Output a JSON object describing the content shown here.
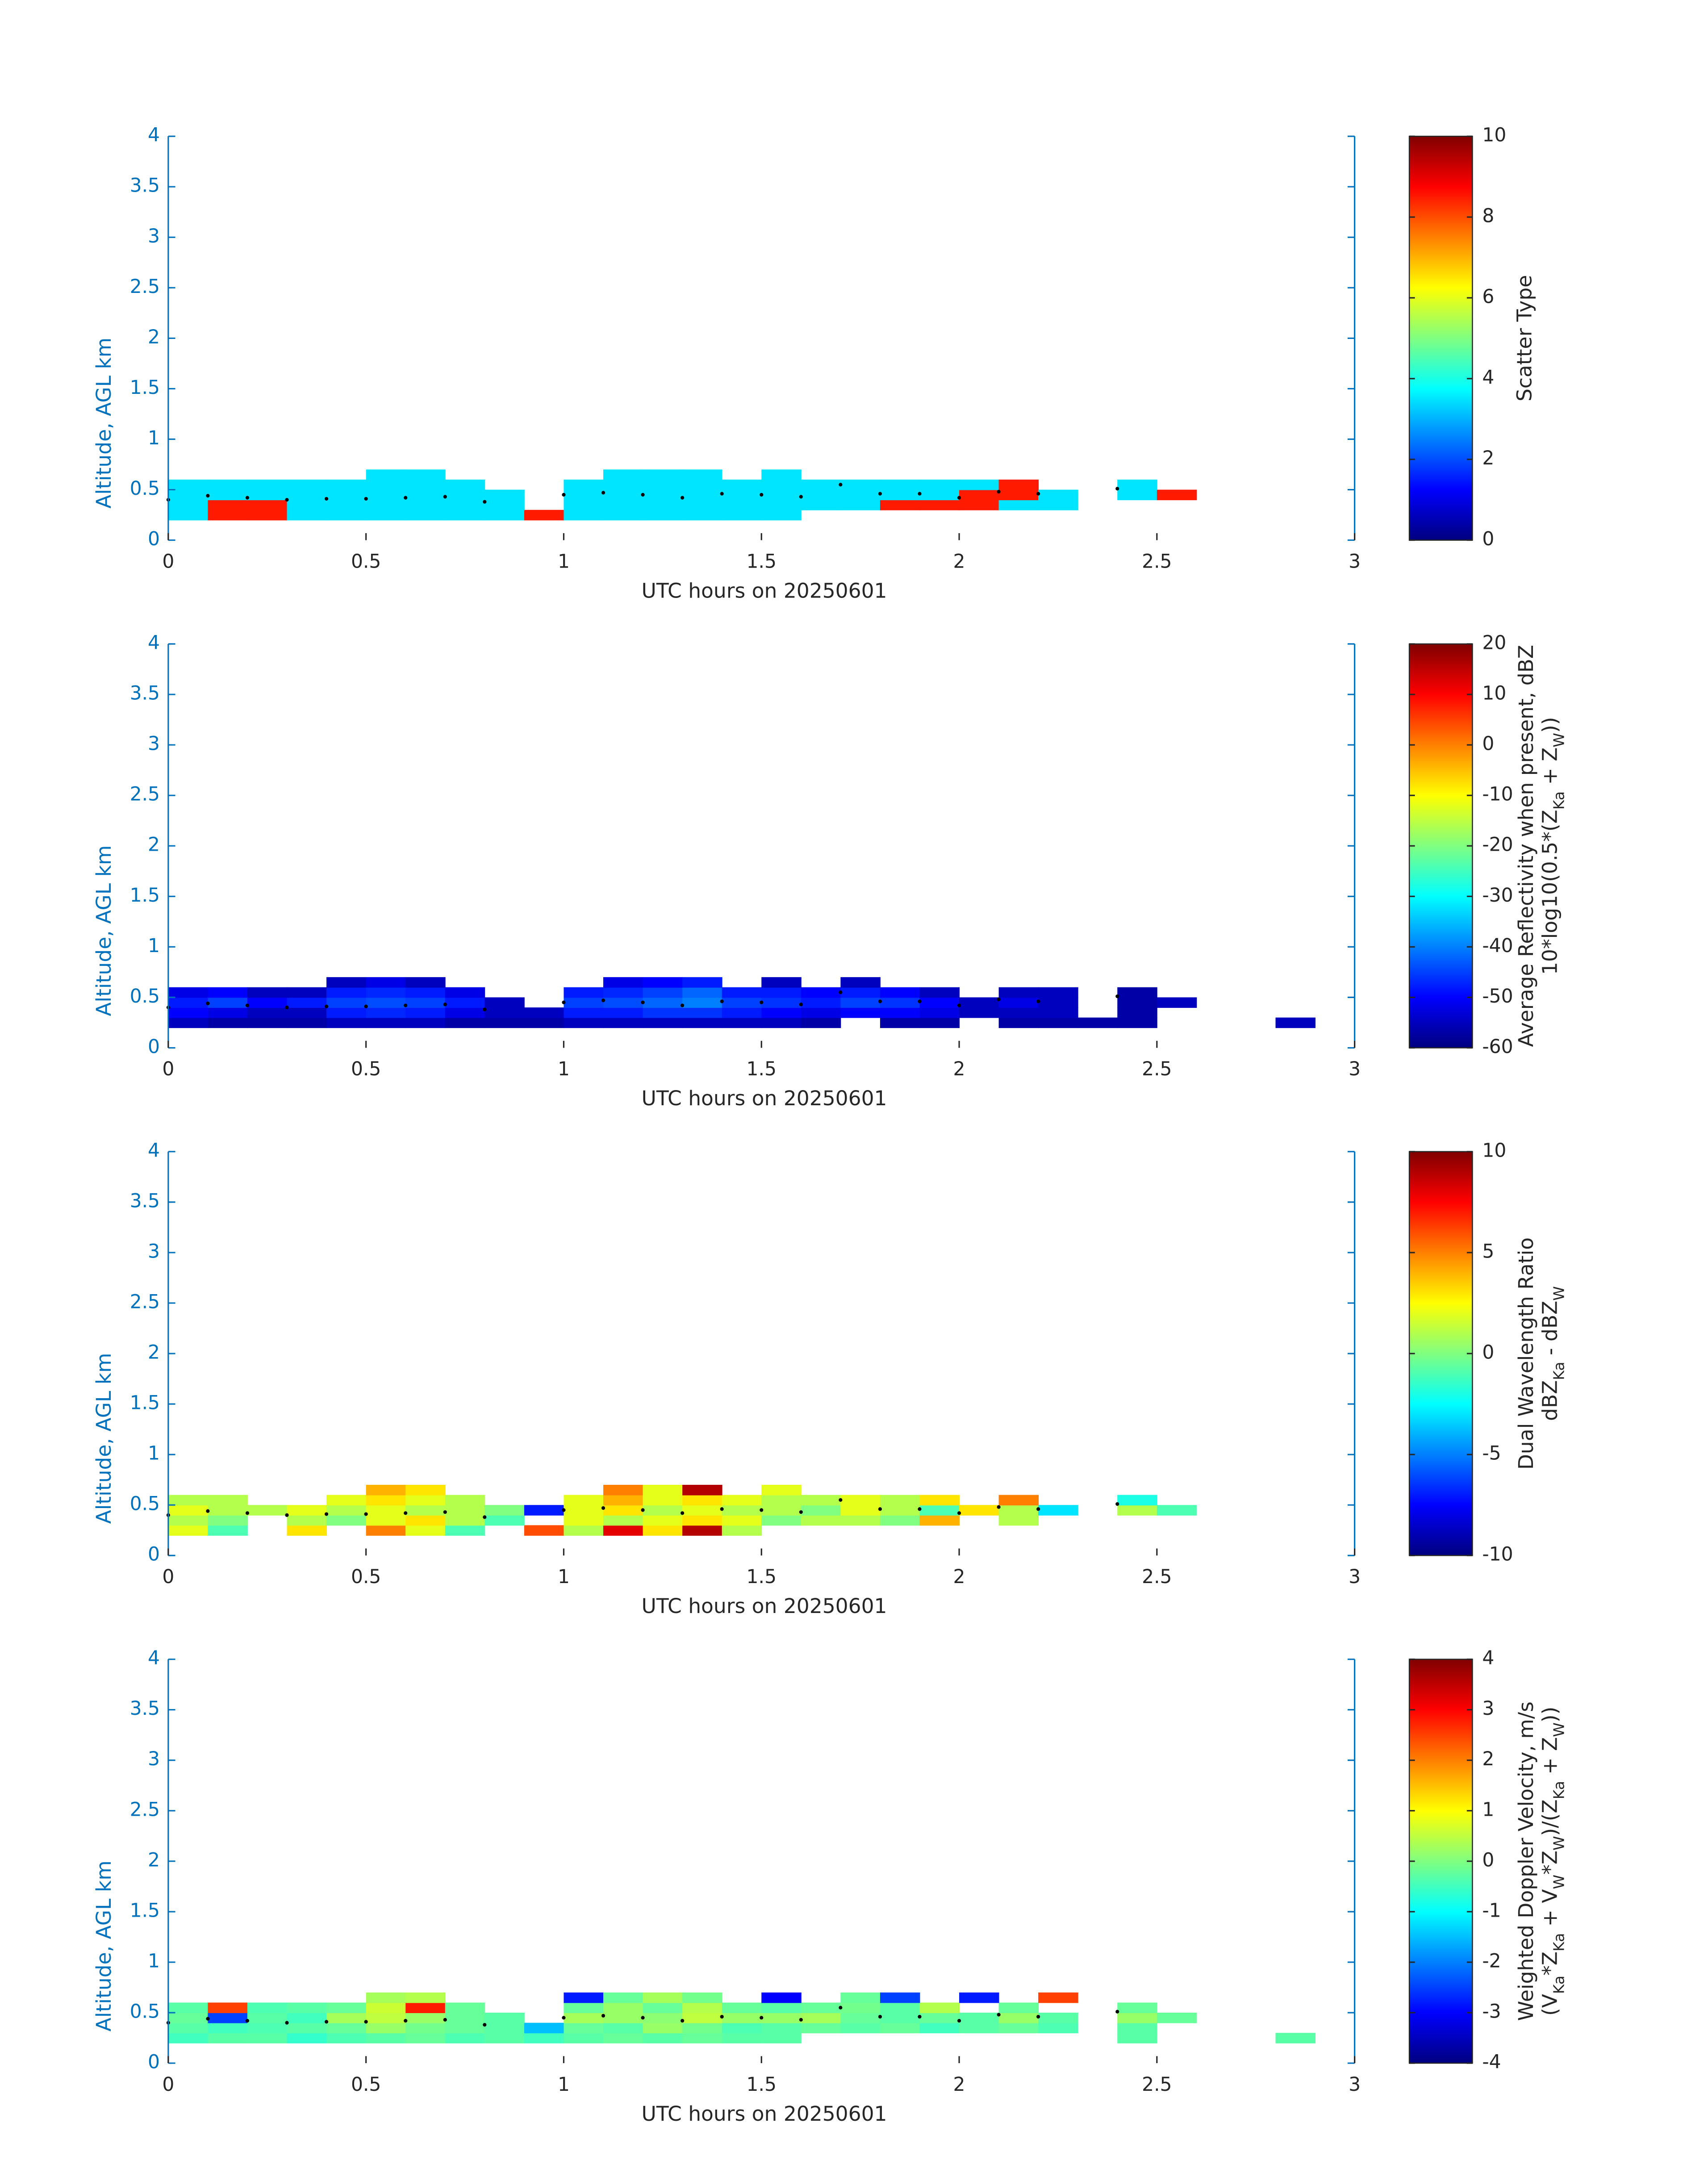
{
  "chart_data": [
    {
      "type": "heatmap",
      "xlabel": "UTC hours on 20250601",
      "ylabel": "Altitude, AGL km",
      "xlim": [
        0,
        3
      ],
      "ylim": [
        0,
        4
      ],
      "xticks": [
        0,
        0.5,
        1,
        1.5,
        2,
        2.5,
        3
      ],
      "yticks": [
        0,
        0.5,
        1,
        1.5,
        2,
        2.5,
        3,
        3.5,
        4
      ],
      "colormap": "jet",
      "clim": [
        0,
        10
      ],
      "cticks": [
        0,
        2,
        4,
        6,
        8,
        10
      ],
      "clabel": [
        [
          "Scatter Type"
        ]
      ],
      "x": [
        0.05,
        0.15,
        0.25,
        0.35,
        0.45,
        0.55,
        0.65,
        0.75,
        0.85,
        0.95,
        1.05,
        1.15,
        1.25,
        1.35,
        1.45,
        1.55,
        1.65,
        1.75,
        1.85,
        1.95,
        2.05,
        2.15,
        2.25,
        2.35,
        2.45,
        2.55,
        2.65,
        2.75,
        2.85,
        2.95
      ],
      "y": [
        0.25,
        0.35,
        0.45,
        0.55,
        0.65
      ],
      "z": [
        [
          3.5,
          8.5,
          8.5,
          3.5,
          3.5,
          3.5,
          3.5,
          3.5,
          3.5,
          8.5,
          3.5,
          3.5,
          3.5,
          3.5,
          3.5,
          3.5,
          null,
          null,
          null,
          null,
          null,
          null,
          null,
          null,
          null,
          null,
          null,
          null,
          null,
          null
        ],
        [
          3.5,
          8.5,
          8.5,
          3.5,
          3.5,
          3.5,
          3.5,
          3.5,
          3.5,
          null,
          3.5,
          3.5,
          3.5,
          3.5,
          3.5,
          3.5,
          3.5,
          3.5,
          8.5,
          8.5,
          8.5,
          3.5,
          3.5,
          null,
          null,
          null,
          null,
          null,
          null,
          null
        ],
        [
          3.5,
          3.5,
          3.5,
          3.5,
          3.5,
          3.5,
          3.5,
          3.5,
          3.5,
          null,
          3.5,
          3.5,
          3.5,
          3.5,
          3.5,
          3.5,
          3.5,
          3.5,
          3.5,
          3.5,
          8.5,
          8.5,
          3.5,
          null,
          3.5,
          8.5,
          null,
          null,
          null,
          null
        ],
        [
          3.5,
          3.5,
          3.5,
          3.5,
          3.5,
          3.5,
          3.5,
          3.5,
          null,
          null,
          3.5,
          3.5,
          3.5,
          3.5,
          3.5,
          3.5,
          3.5,
          3.5,
          3.5,
          3.5,
          3.5,
          8.5,
          null,
          null,
          3.5,
          null,
          null,
          null,
          null,
          null
        ],
        [
          null,
          null,
          null,
          null,
          null,
          3.5,
          3.5,
          null,
          null,
          null,
          null,
          3.5,
          3.5,
          3.5,
          null,
          3.5,
          null,
          null,
          null,
          null,
          null,
          null,
          null,
          null,
          null,
          null,
          null,
          null,
          null,
          null
        ]
      ],
      "dots": {
        "color": "#000000",
        "x": [
          0,
          0.1,
          0.2,
          0.3,
          0.4,
          0.5,
          0.6,
          0.7,
          0.8,
          1,
          1.1,
          1.2,
          1.3,
          1.4,
          1.5,
          1.6,
          1.7,
          1.8,
          1.9,
          2,
          2.1,
          2.2,
          2.4
        ],
        "y": [
          0.4,
          0.44,
          0.42,
          0.4,
          0.41,
          0.41,
          0.42,
          0.43,
          0.38,
          0.45,
          0.47,
          0.45,
          0.42,
          0.46,
          0.45,
          0.43,
          0.55,
          0.46,
          0.46,
          0.42,
          0.48,
          0.46,
          0.51
        ]
      }
    },
    {
      "type": "heatmap",
      "xlabel": "UTC hours on 20250601",
      "ylabel": "Altitude, AGL km",
      "xlim": [
        0,
        3
      ],
      "ylim": [
        0,
        4
      ],
      "xticks": [
        0,
        0.5,
        1,
        1.5,
        2,
        2.5,
        3
      ],
      "yticks": [
        0,
        0.5,
        1,
        1.5,
        2,
        2.5,
        3,
        3.5,
        4
      ],
      "colormap": "jet",
      "clim": [
        -60,
        20
      ],
      "cticks": [
        -60,
        -50,
        -40,
        -30,
        -20,
        -10,
        0,
        10,
        20
      ],
      "clabel": [
        [
          "Average Reflectivity when present, dBZ"
        ],
        [
          "10*log10(0.5*(Z",
          {
            "sub": "Ka"
          },
          " + Z",
          {
            "sub": "W"
          },
          "))"
        ]
      ],
      "x": [
        0.05,
        0.15,
        0.25,
        0.35,
        0.45,
        0.55,
        0.65,
        0.75,
        0.85,
        0.95,
        1.05,
        1.15,
        1.25,
        1.35,
        1.45,
        1.55,
        1.65,
        1.75,
        1.85,
        1.95,
        2.05,
        2.15,
        2.25,
        2.35,
        2.45,
        2.55,
        2.65,
        2.75,
        2.85,
        2.95
      ],
      "y": [
        0.25,
        0.35,
        0.45,
        0.55,
        0.65
      ],
      "z": [
        [
          -55,
          -57,
          -57,
          -57,
          -55,
          -55,
          -55,
          -57,
          -57,
          -57,
          -55,
          -55,
          -55,
          -55,
          -55,
          -55,
          -57,
          null,
          -57,
          -57,
          null,
          -57,
          -57,
          -57,
          -57,
          null,
          null,
          null,
          -55,
          null
        ],
        [
          -50,
          -52,
          -55,
          -55,
          -48,
          -47,
          -48,
          -52,
          -55,
          -55,
          -48,
          -48,
          -46,
          -46,
          -48,
          -50,
          -52,
          -50,
          -50,
          -52,
          -55,
          -55,
          -55,
          null,
          -57,
          null,
          null,
          null,
          null,
          null
        ],
        [
          -48,
          -45,
          -50,
          -48,
          -45,
          -44,
          -45,
          -48,
          -55,
          null,
          -45,
          -44,
          -42,
          -40,
          -45,
          -46,
          -48,
          -45,
          -46,
          -50,
          -55,
          -52,
          -55,
          null,
          -57,
          -55,
          null,
          null,
          null,
          null
        ],
        [
          -52,
          -50,
          -55,
          -55,
          -48,
          -47,
          -48,
          -52,
          null,
          null,
          -48,
          -47,
          -45,
          -42,
          -48,
          -48,
          -50,
          -48,
          -50,
          -55,
          null,
          -55,
          -55,
          null,
          -57,
          null,
          null,
          null,
          null,
          null
        ],
        [
          null,
          null,
          null,
          null,
          -55,
          -52,
          -55,
          null,
          null,
          null,
          null,
          -52,
          -50,
          -48,
          null,
          -55,
          null,
          -55,
          null,
          null,
          null,
          null,
          null,
          null,
          null,
          null,
          null,
          null,
          null,
          null
        ]
      ],
      "dots": {
        "color": "#000000",
        "x": [
          0,
          0.1,
          0.2,
          0.3,
          0.4,
          0.5,
          0.6,
          0.7,
          0.8,
          1,
          1.1,
          1.2,
          1.3,
          1.4,
          1.5,
          1.6,
          1.7,
          1.8,
          1.9,
          2,
          2.1,
          2.2,
          2.4
        ],
        "y": [
          0.4,
          0.44,
          0.42,
          0.4,
          0.41,
          0.41,
          0.42,
          0.43,
          0.38,
          0.45,
          0.47,
          0.45,
          0.42,
          0.46,
          0.45,
          0.43,
          0.55,
          0.46,
          0.46,
          0.42,
          0.48,
          0.46,
          0.51
        ]
      }
    },
    {
      "type": "heatmap",
      "xlabel": "UTC hours on 20250601",
      "ylabel": "Altitude, AGL km",
      "xlim": [
        0,
        3
      ],
      "ylim": [
        0,
        4
      ],
      "xticks": [
        0,
        0.5,
        1,
        1.5,
        2,
        2.5,
        3
      ],
      "yticks": [
        0,
        0.5,
        1,
        1.5,
        2,
        2.5,
        3,
        3.5,
        4
      ],
      "colormap": "jet",
      "clim": [
        -10,
        10
      ],
      "cticks": [
        -10,
        -5,
        0,
        5,
        10
      ],
      "clabel": [
        [
          "Dual Wavelength Ratio"
        ],
        [
          "dBZ",
          {
            "sub": "Ka"
          },
          " - dBZ",
          {
            "sub": "W"
          }
        ]
      ],
      "x": [
        0.05,
        0.15,
        0.25,
        0.35,
        0.45,
        0.55,
        0.65,
        0.75,
        0.85,
        0.95,
        1.05,
        1.15,
        1.25,
        1.35,
        1.45,
        1.55,
        1.65,
        1.75,
        1.85,
        1.95,
        2.05,
        2.15,
        2.25,
        2.35,
        2.45,
        2.55,
        2.65,
        2.75,
        2.85,
        2.95
      ],
      "y": [
        0.25,
        0.35,
        0.45,
        0.55,
        0.65
      ],
      "z": [
        [
          2,
          -1,
          null,
          3,
          null,
          5,
          2,
          -1,
          null,
          6,
          1,
          8,
          3,
          9,
          1,
          null,
          null,
          null,
          null,
          null,
          null,
          null,
          null,
          null,
          null,
          null,
          null,
          null,
          null,
          null
        ],
        [
          1,
          0,
          null,
          1,
          0,
          2,
          3,
          1,
          -1,
          null,
          2,
          1,
          2,
          3,
          2,
          0,
          1,
          1,
          0,
          4,
          null,
          1,
          null,
          null,
          null,
          null,
          null,
          null,
          null,
          null
        ],
        [
          2,
          1,
          1,
          2,
          1,
          2,
          1,
          1,
          0,
          -7,
          2,
          3,
          1,
          2,
          1,
          1,
          0,
          2,
          1,
          -1,
          3,
          1,
          -3,
          null,
          1,
          -1,
          null,
          null,
          null,
          null
        ],
        [
          1,
          1,
          null,
          null,
          2,
          3,
          2,
          1,
          null,
          null,
          2,
          4,
          2,
          3,
          2,
          1,
          1,
          2,
          1,
          3,
          null,
          5,
          null,
          null,
          -2,
          null,
          null,
          null,
          null,
          null
        ],
        [
          null,
          null,
          null,
          null,
          null,
          4,
          3,
          null,
          null,
          null,
          null,
          5,
          2,
          9,
          null,
          2,
          null,
          null,
          null,
          null,
          null,
          null,
          null,
          null,
          null,
          null,
          null,
          null,
          null,
          null
        ]
      ],
      "dots": {
        "color": "#000000",
        "x": [
          0,
          0.1,
          0.2,
          0.3,
          0.4,
          0.5,
          0.6,
          0.7,
          0.8,
          1,
          1.1,
          1.2,
          1.3,
          1.4,
          1.5,
          1.6,
          1.7,
          1.8,
          1.9,
          2,
          2.1,
          2.2,
          2.4
        ],
        "y": [
          0.4,
          0.44,
          0.42,
          0.4,
          0.41,
          0.41,
          0.42,
          0.43,
          0.38,
          0.45,
          0.47,
          0.45,
          0.42,
          0.46,
          0.45,
          0.43,
          0.55,
          0.46,
          0.46,
          0.42,
          0.48,
          0.46,
          0.51
        ]
      }
    },
    {
      "type": "heatmap",
      "xlabel": "UTC hours on 20250601",
      "ylabel": "Altitude, AGL km",
      "xlim": [
        0,
        3
      ],
      "ylim": [
        0,
        4
      ],
      "xticks": [
        0,
        0.5,
        1,
        1.5,
        2,
        2.5,
        3
      ],
      "yticks": [
        0,
        0.5,
        1,
        1.5,
        2,
        2.5,
        3,
        3.5,
        4
      ],
      "colormap": "jet",
      "clim": [
        -4,
        4
      ],
      "cticks": [
        -4,
        -3,
        -2,
        -1,
        0,
        1,
        2,
        3,
        4
      ],
      "clabel": [
        [
          "Weighted Doppler Velocity, m/s"
        ],
        [
          "(V",
          {
            "sub": "Ka"
          },
          "*Z",
          {
            "sub": "Ka"
          },
          " + V",
          {
            "sub": "W"
          },
          "*Z",
          {
            "sub": "W"
          },
          ")/(Z",
          {
            "sub": "Ka"
          },
          " + Z",
          {
            "sub": "W"
          },
          "))"
        ]
      ],
      "x": [
        0.05,
        0.15,
        0.25,
        0.35,
        0.45,
        0.55,
        0.65,
        0.75,
        0.85,
        0.95,
        1.05,
        1.15,
        1.25,
        1.35,
        1.45,
        1.55,
        1.65,
        1.75,
        1.85,
        1.95,
        2.05,
        2.15,
        2.25,
        2.35,
        2.45,
        2.55,
        2.65,
        2.75,
        2.85,
        2.95
      ],
      "y": [
        0.25,
        0.35,
        0.45,
        0.55,
        0.65
      ],
      "z": [
        [
          -0.5,
          -0.3,
          -0.3,
          -0.6,
          -0.4,
          -0.3,
          -0.2,
          -0.4,
          -0.3,
          -0.5,
          -0.3,
          -0.2,
          -0.3,
          -0.2,
          -0.3,
          -0.3,
          null,
          null,
          null,
          null,
          null,
          null,
          null,
          null,
          -0.3,
          null,
          null,
          null,
          -0.3,
          null
        ],
        [
          -0.3,
          -0.5,
          -0.4,
          -0.3,
          -0.2,
          0.2,
          -0.1,
          -0.2,
          -0.3,
          -1.5,
          -0.2,
          -0.3,
          0.2,
          -0.1,
          -0.4,
          -0.3,
          -0.2,
          -0.3,
          -0.2,
          -0.5,
          -0.3,
          -0.2,
          -0.4,
          null,
          -0.3,
          null,
          null,
          null,
          null,
          null
        ],
        [
          -0.2,
          -2.5,
          -0.3,
          -0.5,
          0.3,
          0.5,
          0.2,
          -0.2,
          -0.3,
          null,
          0.3,
          0.2,
          0.1,
          0.5,
          0.2,
          0.2,
          0.3,
          -0.2,
          -0.3,
          -0.2,
          -0.3,
          0.2,
          -0.3,
          null,
          0.2,
          -0.2,
          null,
          null,
          null,
          null
        ],
        [
          -0.3,
          2.5,
          -0.4,
          -0.3,
          -0.2,
          0.6,
          2.8,
          -0.2,
          null,
          null,
          -0.2,
          0.2,
          -0.2,
          0.4,
          -0.2,
          -0.3,
          -0.2,
          -0.1,
          -0.3,
          0.4,
          null,
          -0.2,
          null,
          null,
          -0.2,
          null,
          null,
          null,
          null,
          null
        ],
        [
          null,
          null,
          null,
          null,
          null,
          0.3,
          0.4,
          null,
          null,
          null,
          -2.8,
          -0.2,
          0.3,
          -0.1,
          null,
          -3,
          null,
          -0.2,
          -2.5,
          null,
          -2.8,
          null,
          2.5,
          null,
          null,
          null,
          null,
          null,
          null,
          null
        ]
      ],
      "dots": {
        "color": "#000000",
        "x": [
          0,
          0.1,
          0.2,
          0.3,
          0.4,
          0.5,
          0.6,
          0.7,
          0.8,
          1,
          1.1,
          1.2,
          1.3,
          1.4,
          1.5,
          1.6,
          1.7,
          1.8,
          1.9,
          2,
          2.1,
          2.2,
          2.4
        ],
        "y": [
          0.4,
          0.44,
          0.42,
          0.4,
          0.41,
          0.41,
          0.42,
          0.43,
          0.38,
          0.45,
          0.47,
          0.45,
          0.42,
          0.46,
          0.45,
          0.43,
          0.55,
          0.46,
          0.46,
          0.42,
          0.48,
          0.46,
          0.51
        ]
      }
    }
  ]
}
